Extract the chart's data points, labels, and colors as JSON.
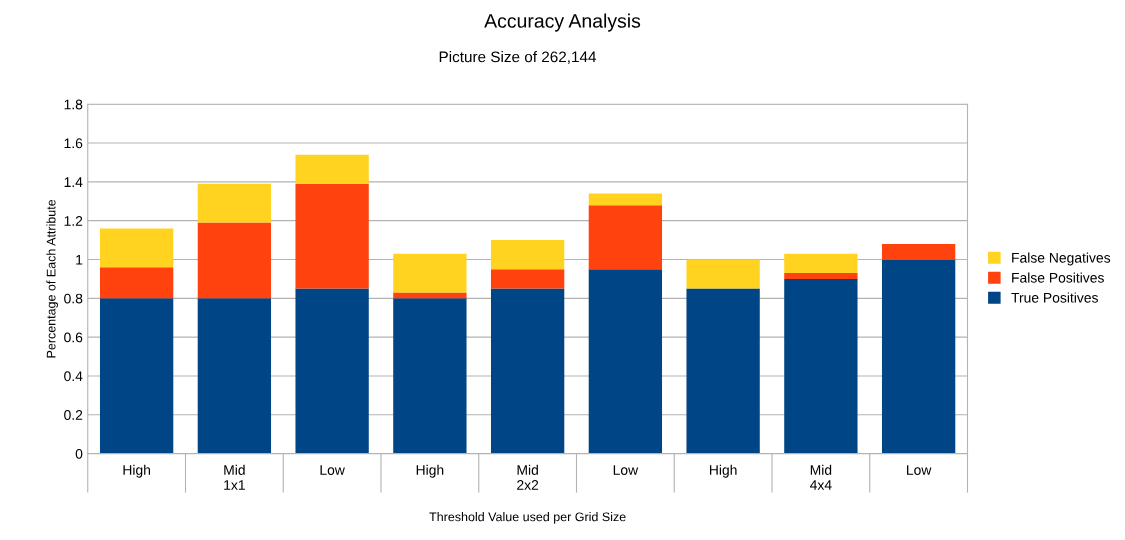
{
  "chart_data": {
    "type": "bar",
    "title": "Accuracy Analysis",
    "subtitle": "Picture Size of 262,144",
    "xlabel": "Threshold Value used per Grid Size",
    "ylabel": "Percentage of Each Attribute",
    "categories": [
      "High",
      "Mid\n1x1",
      "Low",
      "High",
      "Mid\n2x2",
      "Low",
      "High",
      "Mid\n4x4",
      "Low"
    ],
    "stacked": true,
    "series": [
      {
        "name": "True Positives",
        "color": "#004586",
        "values": [
          0.8,
          0.8,
          0.85,
          0.8,
          0.85,
          0.95,
          0.85,
          0.9,
          1.0
        ]
      },
      {
        "name": "False Positives",
        "color": "#ff420e",
        "values": [
          0.16,
          0.39,
          0.54,
          0.03,
          0.1,
          0.33,
          0,
          0.03,
          0.08
        ]
      },
      {
        "name": "False Negatives",
        "color": "#ffd320",
        "values": [
          0.2,
          0.2,
          0.15,
          0.2,
          0.15,
          0.06,
          0.15,
          0.1,
          0
        ]
      }
    ],
    "ylim": [
      0,
      1.8
    ],
    "yticks": [
      0,
      0.2,
      0.4,
      0.6,
      0.8,
      1,
      1.2,
      1.4,
      1.6,
      1.8
    ],
    "grid": "y",
    "legend": "right"
  }
}
